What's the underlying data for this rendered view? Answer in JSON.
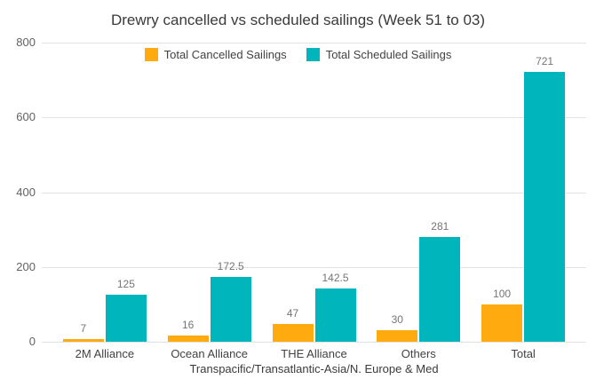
{
  "chart_data": {
    "type": "bar",
    "title": "Drewry cancelled vs scheduled sailings (Week 51 to 03)",
    "categories": [
      "2M Alliance",
      "Ocean Alliance",
      "THE Alliance",
      "Others",
      "Total"
    ],
    "series": [
      {
        "name": "Total Cancelled Sailings",
        "color": "#FFAB0F",
        "values": [
          7,
          16,
          47,
          30,
          100
        ]
      },
      {
        "name": "Total Scheduled Sailings",
        "color": "#00B5BC",
        "values": [
          125,
          172.5,
          142.5,
          281,
          721
        ]
      }
    ],
    "xlabel": "Transpacific/Transatlantic-Asia/N. Europe & Med",
    "ylabel": "",
    "ylim": [
      0,
      800
    ],
    "yticks": [
      0,
      200,
      400,
      600,
      800
    ],
    "grid": true,
    "legend_position": "top"
  }
}
